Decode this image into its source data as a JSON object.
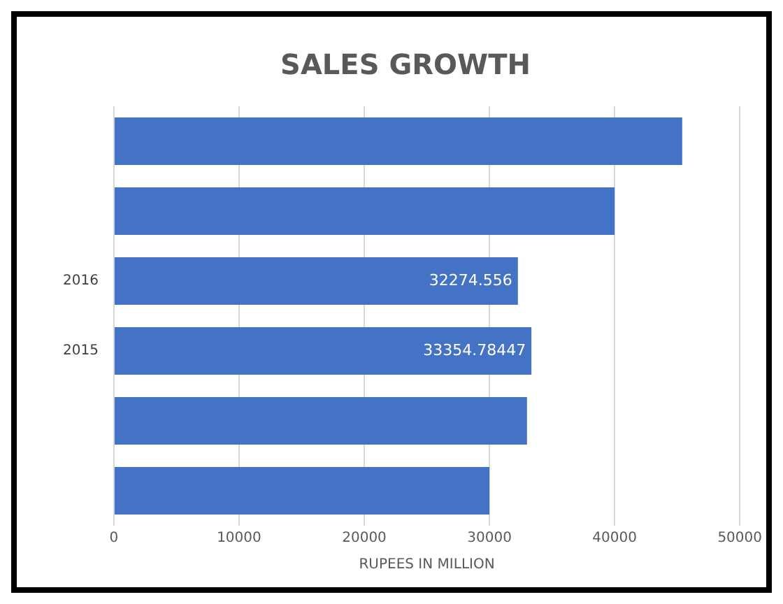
{
  "chart_data": {
    "type": "bar",
    "orientation": "horizontal",
    "title": "SALES GROWTH",
    "xlabel": "RUPEES IN MILLION",
    "categories": [
      null,
      null,
      "2016",
      "2015",
      null,
      null
    ],
    "values": [
      45400,
      40000,
      32274.556,
      33354.78447,
      33000,
      30000
    ],
    "value_labels": [
      null,
      null,
      "32274.556",
      "33354.78447",
      null,
      null
    ],
    "color": "#4472c4",
    "xlim": [
      0,
      50000
    ],
    "xticks": [
      0,
      10000,
      20000,
      30000,
      40000,
      50000
    ],
    "grid": "x",
    "legend": false
  }
}
